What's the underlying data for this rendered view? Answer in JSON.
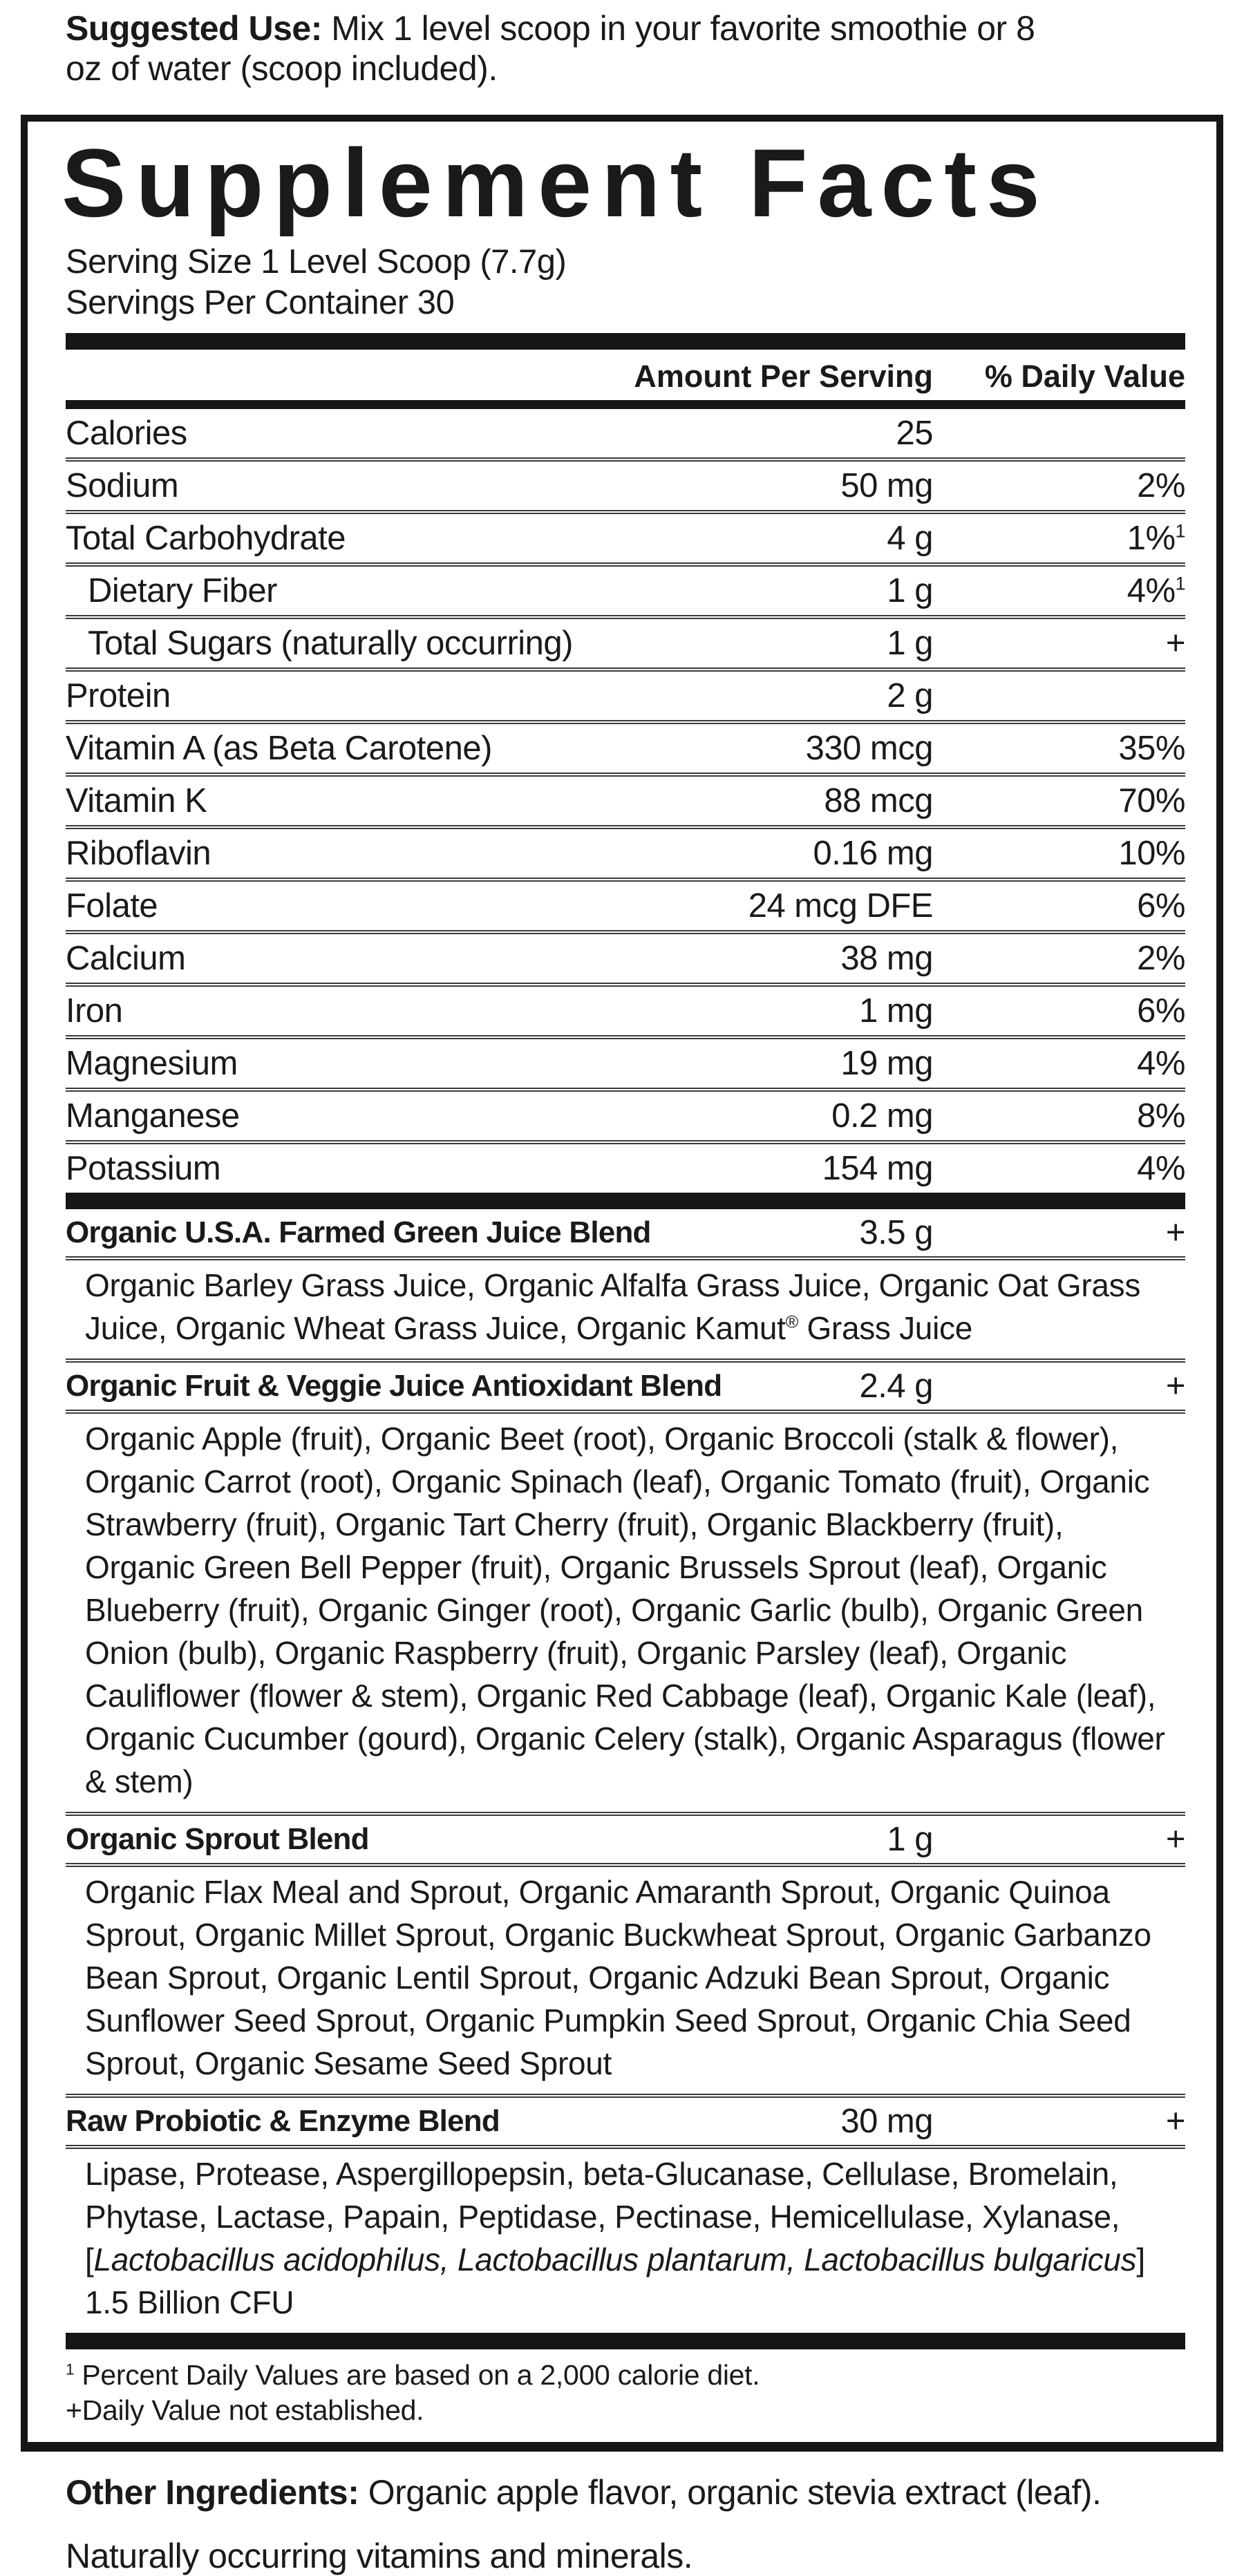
{
  "suggested_use": {
    "label": "Suggested Use:",
    "text": " Mix 1 level scoop in your favorite smoothie or 8 oz of water (scoop included)."
  },
  "panel": {
    "title": "Supplement Facts",
    "serving_size": "Serving Size 1 Level Scoop (7.7g)",
    "servings_per_container": "Servings Per Container 30",
    "columns": {
      "amount": "Amount Per Serving",
      "daily_value": "% Daily Value"
    },
    "nutrients": [
      {
        "name": "Calories",
        "amount": "25",
        "dv": ""
      },
      {
        "name": "Sodium",
        "amount": "50 mg",
        "dv": "2%"
      },
      {
        "name": "Total Carbohydrate",
        "amount": "4 g",
        "dv": "1%",
        "dv_sup": "1"
      },
      {
        "name": "Dietary Fiber",
        "amount": "1 g",
        "dv": "4%",
        "dv_sup": "1",
        "indent": true
      },
      {
        "name": "Total Sugars (naturally occurring)",
        "amount": "1 g",
        "dv": "+",
        "indent": true
      },
      {
        "name": "Protein",
        "amount": "2 g",
        "dv": ""
      },
      {
        "name": "Vitamin A (as Beta Carotene)",
        "amount": "330 mcg",
        "dv": "35%"
      },
      {
        "name": "Vitamin K",
        "amount": "88 mcg",
        "dv": "70%"
      },
      {
        "name": "Riboflavin",
        "amount": "0.16 mg",
        "dv": "10%"
      },
      {
        "name": "Folate",
        "amount": "24 mcg DFE",
        "dv": "6%"
      },
      {
        "name": "Calcium",
        "amount": "38 mg",
        "dv": "2%"
      },
      {
        "name": "Iron",
        "amount": "1 mg",
        "dv": "6%"
      },
      {
        "name": "Magnesium",
        "amount": "19 mg",
        "dv": "4%"
      },
      {
        "name": "Manganese",
        "amount": "0.2 mg",
        "dv": "8%"
      },
      {
        "name": "Potassium",
        "amount": "154 mg",
        "dv": "4%"
      }
    ],
    "blends": [
      {
        "name": "Organic U.S.A. Farmed Green Juice Blend",
        "amount": "3.5 g",
        "dv": "+",
        "ingredients": [
          {
            "t": "Organic Barley Grass Juice, Organic Alfalfa Grass Juice, Organic Oat Grass Juice, Organic Wheat Grass Juice, Organic Kamut"
          },
          {
            "t": "®",
            "s": "sup"
          },
          {
            "t": " Grass Juice"
          }
        ]
      },
      {
        "name": "Organic Fruit & Veggie Juice Antioxidant Blend",
        "amount": "2.4 g",
        "dv": "+",
        "ingredients": [
          {
            "t": "Organic Apple (fruit), Organic Beet (root), Organic Broccoli (stalk & flower), Organic Carrot (root), Organic Spinach (leaf), Organic Tomato (fruit), Organic Strawberry (fruit), Organic Tart Cherry (fruit), Organic Blackberry (fruit), Organic Green Bell Pepper (fruit), Organic Brussels Sprout (leaf), Organic Blueberry (fruit), Organic Ginger (root), Organic Garlic (bulb), Organic Green Onion (bulb), Organic Raspberry (fruit), Organic Parsley (leaf), Organic Cauliflower (flower & stem), Organic Red Cabbage (leaf), Organic Kale (leaf), Organic Cucumber (gourd), Organic Celery (stalk), Organic Asparagus (flower & stem)"
          }
        ]
      },
      {
        "name": "Organic Sprout Blend",
        "amount": "1 g",
        "dv": "+",
        "ingredients": [
          {
            "t": "Organic Flax Meal and Sprout, Organic Amaranth Sprout, Organic Quinoa Sprout, Organic Millet Sprout, Organic Buckwheat Sprout, Organic Garbanzo Bean Sprout, Organic Lentil Sprout, Organic Adzuki Bean Sprout, Organic Sunflower Seed Sprout, Organic Pumpkin Seed Sprout, Organic Chia Seed Sprout, Organic Sesame Seed Sprout"
          }
        ]
      },
      {
        "name": "Raw Probiotic & Enzyme Blend",
        "amount": "30 mg",
        "dv": "+",
        "ingredients": [
          {
            "t": "Lipase, Protease, Aspergillopepsin, beta-Glucanase, Cellulase, Bromelain, Phytase, Lactase, Papain, Peptidase, Pectinase, Hemicellulase, Xylanase, ["
          },
          {
            "t": "Lactobacillus acidophilus, Lactobacillus plantarum, Lactobacillus bulgaricus",
            "s": "italic"
          },
          {
            "t": "] 1.5 Billion CFU"
          }
        ]
      }
    ],
    "footnotes": [
      {
        "sup": "1",
        "text": " Percent Daily Values are based on a 2,000 calorie diet."
      },
      {
        "sup": "",
        "text": "+Daily Value not established."
      }
    ]
  },
  "other_ingredients": {
    "label": "Other Ingredients:",
    "text": " Organic apple flavor, organic stevia extract (leaf)."
  },
  "naturally_occurring": "Naturally occurring vitamins and minerals."
}
